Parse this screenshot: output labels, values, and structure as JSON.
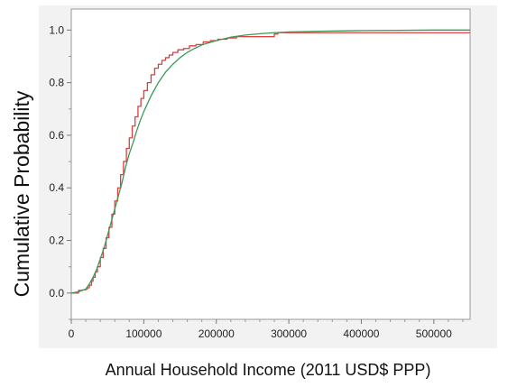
{
  "chart_data": {
    "type": "line",
    "title": "",
    "xlabel": "Annual Household Income (2011 USD$ PPP)",
    "ylabel": "Cumulative Probability",
    "xlim": [
      0,
      550000
    ],
    "ylim": [
      -0.1,
      1.08
    ],
    "x_ticks": [
      0,
      100000,
      200000,
      300000,
      400000,
      500000
    ],
    "x_tick_labels": [
      "0",
      "100000",
      "200000",
      "300000",
      "400000",
      "500000"
    ],
    "y_ticks": [
      0.0,
      0.2,
      0.4,
      0.6,
      0.8,
      1.0
    ],
    "y_tick_labels": [
      "0.0",
      "0.2",
      "0.4",
      "0.6",
      "0.8",
      "1.0"
    ],
    "grid": false,
    "legend": "none",
    "series": [
      {
        "style": "step",
        "color": "#e03c3c",
        "x": [
          0,
          10000,
          15000,
          20000,
          22000,
          25000,
          28000,
          30000,
          33000,
          36000,
          40000,
          44000,
          48000,
          52000,
          56000,
          60000,
          64000,
          68000,
          72000,
          76000,
          80000,
          84000,
          88000,
          92000,
          96000,
          100000,
          105000,
          110000,
          115000,
          120000,
          125000,
          130000,
          135000,
          140000,
          147000,
          155000,
          163000,
          172000,
          182000,
          192000,
          202000,
          215000,
          228000,
          240000,
          280000,
          285000,
          300000,
          400000,
          550000
        ],
        "y": [
          0.0,
          0.01,
          0.012,
          0.015,
          0.02,
          0.03,
          0.045,
          0.06,
          0.08,
          0.1,
          0.135,
          0.17,
          0.21,
          0.25,
          0.3,
          0.35,
          0.4,
          0.45,
          0.5,
          0.55,
          0.59,
          0.635,
          0.67,
          0.71,
          0.74,
          0.77,
          0.8,
          0.83,
          0.855,
          0.87,
          0.885,
          0.895,
          0.905,
          0.915,
          0.925,
          0.93,
          0.94,
          0.945,
          0.955,
          0.96,
          0.965,
          0.97,
          0.975,
          0.975,
          0.985,
          0.99,
          0.99,
          0.99,
          0.99
        ]
      },
      {
        "style": "smooth",
        "color": "#3a9a5a",
        "x": [
          0,
          10000,
          20000,
          25000,
          30000,
          35000,
          40000,
          45000,
          50000,
          55000,
          60000,
          65000,
          70000,
          75000,
          80000,
          85000,
          90000,
          95000,
          100000,
          110000,
          120000,
          130000,
          140000,
          150000,
          160000,
          170000,
          180000,
          190000,
          200000,
          220000,
          240000,
          260000,
          280000,
          300000,
          350000,
          400000,
          450000,
          500000,
          550000
        ],
        "y": [
          0.0,
          0.005,
          0.015,
          0.035,
          0.06,
          0.09,
          0.13,
          0.17,
          0.22,
          0.27,
          0.32,
          0.37,
          0.42,
          0.48,
          0.53,
          0.57,
          0.615,
          0.655,
          0.69,
          0.75,
          0.8,
          0.84,
          0.87,
          0.895,
          0.915,
          0.93,
          0.943,
          0.952,
          0.96,
          0.973,
          0.981,
          0.986,
          0.99,
          0.993,
          0.996,
          0.998,
          0.999,
          1.0,
          1.0
        ]
      }
    ]
  }
}
